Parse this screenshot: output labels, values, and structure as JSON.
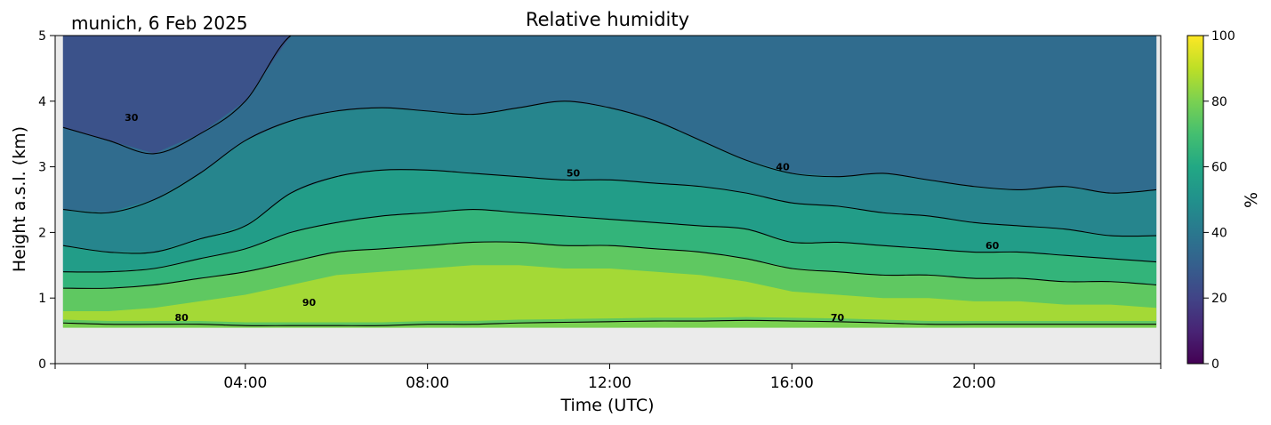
{
  "chart_data": {
    "type": "heatmap",
    "title": "Relative humidity",
    "site_label": "munich, 6 Feb 2025",
    "xlabel": "Time (UTC)",
    "ylabel": "Height a.s.l. (km)",
    "x_range_hours": [
      0,
      24
    ],
    "x_ticks": [
      {
        "hour": 4,
        "label": "04:00"
      },
      {
        "hour": 8,
        "label": "08:00"
      },
      {
        "hour": 12,
        "label": "12:00"
      },
      {
        "hour": 16,
        "label": "16:00"
      },
      {
        "hour": 20,
        "label": "20:00"
      }
    ],
    "y_range_km": [
      0,
      5
    ],
    "y_ticks": [
      0,
      1,
      2,
      3,
      4,
      5
    ],
    "colorbar": {
      "label": "%",
      "range": [
        0,
        100
      ],
      "ticks": [
        0,
        20,
        40,
        60,
        80,
        100
      ],
      "colormap": "viridis"
    },
    "no_data_below_km": 0.55,
    "no_data_color": "#ebebeb",
    "time_hours": [
      0,
      1,
      2,
      3,
      4,
      5,
      6,
      7,
      8,
      9,
      10,
      11,
      12,
      13,
      14,
      15,
      16,
      17,
      18,
      19,
      20,
      21,
      22,
      23,
      24
    ],
    "contour_levels": [
      30,
      40,
      50,
      60,
      70,
      80,
      90
    ],
    "contour_heights_km": [
      {
        "level": 30,
        "heights": [
          3.6,
          3.4,
          3.2,
          3.5,
          4.0,
          5.0,
          5.0,
          5.0,
          5.0,
          5.0,
          5.0,
          5.0,
          5.0,
          5.0,
          5.0,
          5.0,
          5.0,
          5.0,
          5.0,
          5.0,
          5.0,
          5.0,
          5.0,
          5.0,
          5.0
        ]
      },
      {
        "level": 40,
        "heights": [
          2.35,
          2.3,
          2.5,
          2.9,
          3.4,
          3.7,
          3.85,
          3.9,
          3.85,
          3.8,
          3.9,
          4.0,
          3.9,
          3.7,
          3.4,
          3.1,
          2.9,
          2.85,
          2.9,
          2.8,
          2.7,
          2.65,
          2.7,
          2.6,
          2.65
        ]
      },
      {
        "level": 50,
        "heights": [
          1.8,
          1.7,
          1.7,
          1.9,
          2.1,
          2.6,
          2.85,
          2.95,
          2.95,
          2.9,
          2.85,
          2.8,
          2.8,
          2.75,
          2.7,
          2.6,
          2.45,
          2.4,
          2.3,
          2.25,
          2.15,
          2.1,
          2.05,
          1.95,
          1.95
        ]
      },
      {
        "level": 60,
        "heights": [
          1.4,
          1.4,
          1.45,
          1.6,
          1.75,
          2.0,
          2.15,
          2.25,
          2.3,
          2.35,
          2.3,
          2.25,
          2.2,
          2.15,
          2.1,
          2.05,
          1.85,
          1.85,
          1.8,
          1.75,
          1.7,
          1.7,
          1.65,
          1.6,
          1.55
        ]
      },
      {
        "level": 70,
        "heights": [
          1.15,
          1.15,
          1.2,
          1.3,
          1.4,
          1.55,
          1.7,
          1.75,
          1.8,
          1.85,
          1.85,
          1.8,
          1.8,
          1.75,
          1.7,
          1.6,
          1.45,
          1.4,
          1.35,
          1.35,
          1.3,
          1.3,
          1.25,
          1.25,
          1.2
        ]
      },
      {
        "level": 80,
        "heights": [
          0.62,
          0.6,
          0.6,
          0.6,
          0.58,
          0.58,
          0.58,
          0.58,
          0.6,
          0.6,
          0.62,
          0.63,
          0.64,
          0.65,
          0.65,
          0.66,
          0.65,
          0.64,
          0.62,
          0.6,
          0.6,
          0.6,
          0.6,
          0.6,
          0.6
        ]
      }
    ],
    "contour_labels": [
      {
        "text": "30",
        "hour": 1.5,
        "km": 3.7
      },
      {
        "text": "40",
        "hour": 15.8,
        "km": 2.95
      },
      {
        "text": "50",
        "hour": 11.2,
        "km": 2.85
      },
      {
        "text": "60",
        "hour": 20.4,
        "km": 1.75
      },
      {
        "text": "70",
        "hour": 17.0,
        "km": 0.65
      },
      {
        "text": "80",
        "hour": 2.6,
        "km": 0.65
      },
      {
        "text": "90",
        "hour": 5.4,
        "km": 0.88
      }
    ]
  }
}
